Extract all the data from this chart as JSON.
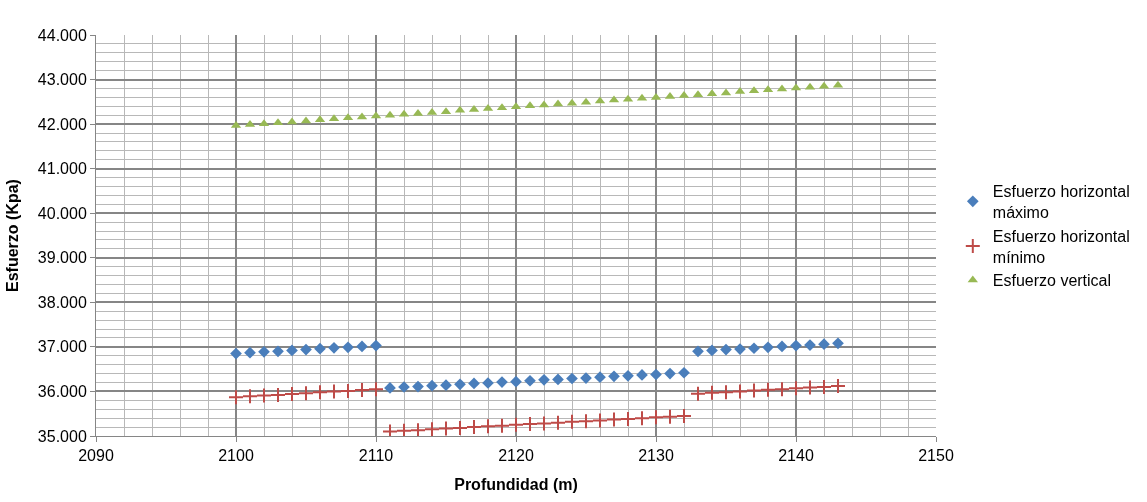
{
  "chart_data": {
    "type": "scatter",
    "xlabel": "Profundidad (m)",
    "ylabel": "Esfuerzo (Kpa)",
    "x": [
      2100,
      2101,
      2102,
      2103,
      2104,
      2105,
      2106,
      2107,
      2108,
      2109,
      2110,
      2111,
      2112,
      2113,
      2114,
      2115,
      2116,
      2117,
      2118,
      2119,
      2120,
      2121,
      2122,
      2123,
      2124,
      2125,
      2126,
      2127,
      2128,
      2129,
      2130,
      2131,
      2132,
      2133,
      2134,
      2135,
      2136,
      2137,
      2138,
      2139,
      2140,
      2141,
      2142,
      2143
    ],
    "series": [
      {
        "name": "Esfuerzo horizontal máximo",
        "color": "#4a7ebb",
        "marker": "diamond",
        "values": [
          36.85,
          36.87,
          36.89,
          36.9,
          36.92,
          36.94,
          36.96,
          36.98,
          36.99,
          37.01,
          37.03,
          36.08,
          36.1,
          36.11,
          36.13,
          36.14,
          36.16,
          36.18,
          36.19,
          36.21,
          36.22,
          36.24,
          36.26,
          36.27,
          36.29,
          36.3,
          36.32,
          36.34,
          36.35,
          36.37,
          36.38,
          36.4,
          36.42,
          36.9,
          36.92,
          36.94,
          36.95,
          36.97,
          36.99,
          37.01,
          37.03,
          37.04,
          37.06,
          37.08
        ]
      },
      {
        "name": "Esfuerzo horizontal mínimo",
        "color": "#be4b48",
        "marker": "cross",
        "values": [
          35.87,
          35.89,
          35.91,
          35.92,
          35.94,
          35.96,
          35.98,
          36.0,
          36.01,
          36.03,
          36.05,
          35.1,
          35.12,
          35.13,
          35.15,
          35.17,
          35.18,
          35.2,
          35.22,
          35.23,
          35.25,
          35.27,
          35.28,
          35.3,
          35.32,
          35.33,
          35.35,
          35.37,
          35.38,
          35.4,
          35.42,
          35.43,
          35.45,
          35.95,
          35.97,
          35.98,
          36.0,
          36.02,
          36.04,
          36.05,
          36.07,
          36.09,
          36.1,
          36.12
        ]
      },
      {
        "name": "Esfuerzo vertical",
        "color": "#98b954",
        "marker": "triangle",
        "values": [
          41.97,
          41.99,
          42.01,
          42.03,
          42.05,
          42.07,
          42.1,
          42.12,
          42.14,
          42.16,
          42.18,
          42.2,
          42.22,
          42.24,
          42.26,
          42.28,
          42.31,
          42.33,
          42.35,
          42.37,
          42.39,
          42.41,
          42.43,
          42.45,
          42.47,
          42.49,
          42.52,
          42.54,
          42.56,
          42.58,
          42.6,
          42.62,
          42.64,
          42.66,
          42.68,
          42.7,
          42.73,
          42.75,
          42.77,
          42.79,
          42.81,
          42.83,
          42.85,
          42.87
        ]
      }
    ],
    "xlim": [
      2090,
      2150
    ],
    "xticks": [
      2090,
      2100,
      2110,
      2120,
      2130,
      2140,
      2150
    ],
    "ylim": [
      35,
      44
    ],
    "yticks": [
      {
        "value": 35,
        "label": "35.000"
      },
      {
        "value": 36,
        "label": "36.000"
      },
      {
        "value": 37,
        "label": "37.000"
      },
      {
        "value": 38,
        "label": "38.000"
      },
      {
        "value": 39,
        "label": "39.000"
      },
      {
        "value": 40,
        "label": "40.000"
      },
      {
        "value": 41,
        "label": "41.000"
      },
      {
        "value": 42,
        "label": "42.000"
      },
      {
        "value": 43,
        "label": "43.000"
      },
      {
        "value": 44,
        "label": "44.000"
      }
    ],
    "grid": true,
    "legend": "right"
  }
}
